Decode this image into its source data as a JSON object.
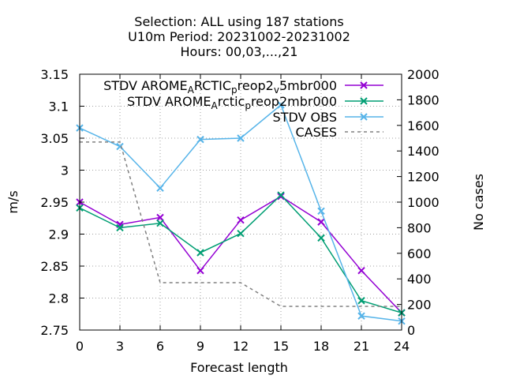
{
  "chart_data": {
    "type": "line",
    "title_lines": [
      "Selection: ALL using   187 stations",
      "U10m   Period: 20231002-20231002",
      "Hours:  00,03,...,21"
    ],
    "xlabel": "Forecast length",
    "ylabel": "m/s",
    "y2label": "No cases",
    "x": [
      0,
      3,
      6,
      9,
      12,
      15,
      18,
      21,
      24
    ],
    "xlim": [
      0,
      24
    ],
    "ylim": [
      2.75,
      3.15
    ],
    "y2lim": [
      0,
      2000
    ],
    "x_ticks": [
      "0",
      "3",
      "6",
      "9",
      "12",
      "15",
      "18",
      "21",
      "24"
    ],
    "y_ticks": [
      "2.75",
      "2.8",
      "2.85",
      "2.9",
      "2.95",
      "3",
      "3.05",
      "3.1",
      "3.15"
    ],
    "y2_ticks": [
      "0",
      "200",
      "400",
      "600",
      "800",
      "1000",
      "1200",
      "1400",
      "1600",
      "1800",
      "2000"
    ],
    "grid": true,
    "legend_position": "top-right",
    "series": [
      {
        "name": "STDV AROME_ARCTIC_preop2_v5mbr000",
        "legend_parts": [
          [
            "STDV AROME",
            0
          ],
          [
            "A",
            -1
          ],
          [
            "RCTIC",
            0
          ],
          [
            "p",
            -1
          ],
          [
            "reop2",
            0
          ],
          [
            "v",
            -1
          ],
          [
            "5mbr000",
            0
          ]
        ],
        "color": "#9400d3",
        "marker": "x",
        "axis": "y",
        "values": [
          2.95,
          2.915,
          2.926,
          2.843,
          2.922,
          2.959,
          2.919,
          2.843,
          2.777
        ]
      },
      {
        "name": "STDV AROME_Arctic_preop2mbr000",
        "legend_parts": [
          [
            "STDV AROME",
            0
          ],
          [
            "A",
            -1
          ],
          [
            "rctic",
            0
          ],
          [
            "p",
            -1
          ],
          [
            "reop2mbr000",
            0
          ]
        ],
        "color": "#009e73",
        "marker": "x",
        "axis": "y",
        "values": [
          2.941,
          2.91,
          2.917,
          2.871,
          2.901,
          2.961,
          2.894,
          2.796,
          2.777
        ]
      },
      {
        "name": "STDV OBS",
        "legend_parts": [
          [
            "STDV OBS",
            0
          ]
        ],
        "color": "#56b4e9",
        "marker": "x",
        "axis": "y",
        "values": [
          3.066,
          3.037,
          2.972,
          3.048,
          3.05,
          3.102,
          2.936,
          2.772,
          2.764
        ]
      },
      {
        "name": "CASES",
        "legend_parts": [
          [
            "CASES",
            0
          ]
        ],
        "color": "#808080",
        "marker": "none",
        "dashed": true,
        "axis": "y2",
        "values": [
          1470,
          1470,
          370,
          370,
          370,
          185,
          185,
          185,
          185
        ]
      }
    ]
  }
}
